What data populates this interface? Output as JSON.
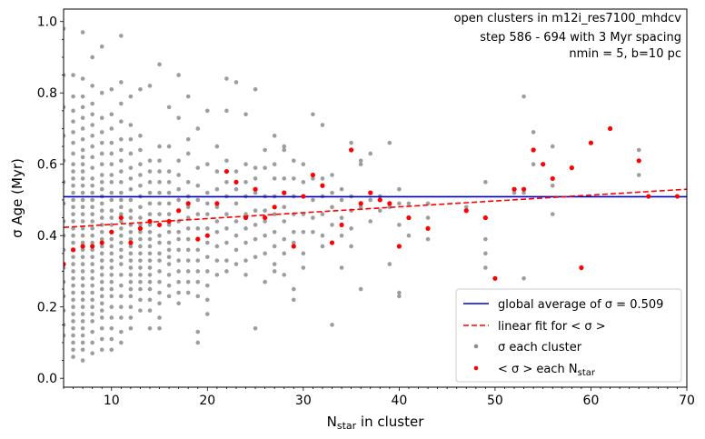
{
  "chart_data": {
    "type": "scatter",
    "xlabel": "N",
    "xlabel_sub": "star",
    "xlabel_suffix": " in cluster",
    "ylabel": "σ Age (Myr)",
    "xlim": [
      5,
      70
    ],
    "ylim": [
      -0.025,
      1.035
    ],
    "x_ticks": [
      10,
      20,
      30,
      40,
      50,
      60,
      70
    ],
    "y_ticks": [
      0.0,
      0.2,
      0.4,
      0.6,
      0.8,
      1.0
    ],
    "x_tick_labels": [
      "10",
      "20",
      "30",
      "40",
      "50",
      "60",
      "70"
    ],
    "y_tick_labels": [
      "0.0",
      "0.2",
      "0.4",
      "0.6",
      "0.8",
      "1.0"
    ],
    "annotations": [
      "open clusters in m12i_res7100_mhdcv",
      "step 586 - 694 with 3 Myr spacing",
      "nmin = 5, b=10 pc"
    ],
    "legend_position": "lower right",
    "legend": [
      {
        "label": "global average of σ = 0.509",
        "kind": "line",
        "color": "#0000cc",
        "dash": false
      },
      {
        "label": "linear fit for < σ >",
        "kind": "line",
        "color": "#ff0000",
        "dash": true
      },
      {
        "label": "σ each cluster",
        "kind": "dot",
        "color": "#8c8c8c"
      },
      {
        "label": "< σ > each N",
        "label_sub": "star",
        "kind": "dot",
        "color": "#ff0000"
      }
    ],
    "series": [
      {
        "name": "global average of σ = 0.509",
        "type": "hline",
        "color": "#0000cc",
        "y": 0.509
      },
      {
        "name": "linear fit for < σ >",
        "type": "line",
        "color": "#ff0000",
        "dashed": true,
        "x": [
          5,
          70
        ],
        "y": [
          0.423,
          0.53
        ]
      },
      {
        "name": "< σ > each N",
        "type": "scatter",
        "color": "#ff0000",
        "points": [
          [
            5,
            0.32
          ],
          [
            6,
            0.36
          ],
          [
            7,
            0.37
          ],
          [
            8,
            0.37
          ],
          [
            9,
            0.38
          ],
          [
            10,
            0.41
          ],
          [
            11,
            0.45
          ],
          [
            12,
            0.38
          ],
          [
            13,
            0.42
          ],
          [
            14,
            0.44
          ],
          [
            15,
            0.43
          ],
          [
            16,
            0.44
          ],
          [
            17,
            0.47
          ],
          [
            18,
            0.49
          ],
          [
            19,
            0.39
          ],
          [
            20,
            0.4
          ],
          [
            21,
            0.49
          ],
          [
            22,
            0.58
          ],
          [
            23,
            0.55
          ],
          [
            24,
            0.45
          ],
          [
            25,
            0.53
          ],
          [
            26,
            0.45
          ],
          [
            27,
            0.48
          ],
          [
            28,
            0.52
          ],
          [
            29,
            0.37
          ],
          [
            30,
            0.51
          ],
          [
            31,
            0.57
          ],
          [
            32,
            0.54
          ],
          [
            33,
            0.38
          ],
          [
            34,
            0.43
          ],
          [
            35,
            0.64
          ],
          [
            36,
            0.49
          ],
          [
            37,
            0.52
          ],
          [
            38,
            0.5
          ],
          [
            39,
            0.49
          ],
          [
            40,
            0.37
          ],
          [
            41,
            0.45
          ],
          [
            43,
            0.42
          ],
          [
            47,
            0.47
          ],
          [
            49,
            0.45
          ],
          [
            50,
            0.28
          ],
          [
            52,
            0.53
          ],
          [
            53,
            0.53
          ],
          [
            54,
            0.64
          ],
          [
            55,
            0.6
          ],
          [
            56,
            0.56
          ],
          [
            58,
            0.59
          ],
          [
            59,
            0.31
          ],
          [
            60,
            0.66
          ],
          [
            62,
            0.7
          ],
          [
            65,
            0.61
          ],
          [
            66,
            0.51
          ],
          [
            69,
            0.51
          ]
        ]
      },
      {
        "name": "σ each cluster",
        "type": "scatter",
        "color": "#8c8c8c",
        "columns": [
          {
            "x": 5,
            "y": [
              0.98,
              0.85,
              0.76,
              0.68,
              0.61,
              0.55,
              0.49,
              0.44,
              0.4,
              0.36,
              0.31,
              0.27,
              0.23,
              0.19,
              0.15,
              0.12
            ]
          },
          {
            "x": 6,
            "y": [
              0.85,
              0.79,
              0.75,
              0.72,
              0.69,
              0.66,
              0.63,
              0.6,
              0.58,
              0.56,
              0.54,
              0.52,
              0.5,
              0.48,
              0.46,
              0.44,
              0.42,
              0.4,
              0.38,
              0.36,
              0.34,
              0.32,
              0.3,
              0.28,
              0.26,
              0.24,
              0.22,
              0.2,
              0.18,
              0.16,
              0.14,
              0.12,
              0.1,
              0.08,
              0.06
            ]
          },
          {
            "x": 7,
            "y": [
              0.97,
              0.84,
              0.79,
              0.76,
              0.73,
              0.7,
              0.67,
              0.64,
              0.62,
              0.6,
              0.58,
              0.56,
              0.54,
              0.52,
              0.5,
              0.48,
              0.46,
              0.44,
              0.42,
              0.4,
              0.38,
              0.36,
              0.34,
              0.32,
              0.3,
              0.28,
              0.26,
              0.24,
              0.22,
              0.2,
              0.18,
              0.16,
              0.14,
              0.12,
              0.1,
              0.08,
              0.05
            ]
          },
          {
            "x": 8,
            "y": [
              0.9,
              0.82,
              0.77,
              0.74,
              0.71,
              0.68,
              0.65,
              0.62,
              0.59,
              0.56,
              0.54,
              0.52,
              0.5,
              0.48,
              0.46,
              0.44,
              0.42,
              0.4,
              0.38,
              0.36,
              0.34,
              0.32,
              0.3,
              0.28,
              0.26,
              0.24,
              0.22,
              0.2,
              0.18,
              0.16,
              0.13,
              0.1,
              0.07
            ]
          },
          {
            "x": 9,
            "y": [
              0.93,
              0.8,
              0.73,
              0.69,
              0.66,
              0.63,
              0.6,
              0.57,
              0.55,
              0.53,
              0.51,
              0.49,
              0.47,
              0.45,
              0.43,
              0.41,
              0.39,
              0.37,
              0.35,
              0.33,
              0.31,
              0.29,
              0.27,
              0.25,
              0.23,
              0.21,
              0.19,
              0.17,
              0.14,
              0.11,
              0.08
            ]
          },
          {
            "x": 10,
            "y": [
              0.81,
              0.74,
              0.7,
              0.66,
              0.63,
              0.6,
              0.57,
              0.55,
              0.52,
              0.5,
              0.47,
              0.45,
              0.43,
              0.41,
              0.39,
              0.37,
              0.35,
              0.33,
              0.31,
              0.29,
              0.27,
              0.25,
              0.23,
              0.2,
              0.17,
              0.14,
              0.11,
              0.08
            ]
          },
          {
            "x": 11,
            "y": [
              0.96,
              0.83,
              0.77,
              0.72,
              0.67,
              0.64,
              0.61,
              0.58,
              0.55,
              0.52,
              0.5,
              0.48,
              0.46,
              0.44,
              0.42,
              0.4,
              0.38,
              0.36,
              0.34,
              0.32,
              0.29,
              0.26,
              0.23,
              0.2,
              0.17,
              0.13,
              0.1
            ]
          },
          {
            "x": 12,
            "y": [
              0.79,
              0.71,
              0.67,
              0.63,
              0.59,
              0.56,
              0.53,
              0.5,
              0.47,
              0.45,
              0.43,
              0.41,
              0.39,
              0.37,
              0.35,
              0.33,
              0.31,
              0.29,
              0.27,
              0.25,
              0.23,
              0.2,
              0.17,
              0.14
            ]
          },
          {
            "x": 13,
            "y": [
              0.81,
              0.68,
              0.64,
              0.6,
              0.57,
              0.54,
              0.51,
              0.48,
              0.45,
              0.43,
              0.41,
              0.39,
              0.37,
              0.35,
              0.33,
              0.31,
              0.29,
              0.27,
              0.25,
              0.22,
              0.19
            ]
          },
          {
            "x": 14,
            "y": [
              0.82,
              0.61,
              0.58,
              0.55,
              0.52,
              0.49,
              0.46,
              0.43,
              0.41,
              0.39,
              0.37,
              0.35,
              0.33,
              0.31,
              0.29,
              0.27,
              0.25,
              0.22,
              0.19,
              0.14
            ]
          },
          {
            "x": 15,
            "y": [
              0.88,
              0.65,
              0.61,
              0.58,
              0.55,
              0.52,
              0.49,
              0.46,
              0.43,
              0.4,
              0.38,
              0.35,
              0.33,
              0.3,
              0.27,
              0.24,
              0.21,
              0.17,
              0.14
            ]
          },
          {
            "x": 16,
            "y": [
              0.76,
              0.65,
              0.58,
              0.55,
              0.52,
              0.49,
              0.46,
              0.43,
              0.41,
              0.38,
              0.36,
              0.34,
              0.32,
              0.29,
              0.26,
              0.23
            ]
          },
          {
            "x": 17,
            "y": [
              0.85,
              0.73,
              0.61,
              0.57,
              0.53,
              0.5,
              0.47,
              0.44,
              0.41,
              0.39,
              0.36,
              0.33,
              0.3,
              0.27,
              0.24,
              0.21
            ]
          },
          {
            "x": 18,
            "y": [
              0.79,
              0.67,
              0.63,
              0.55,
              0.51,
              0.48,
              0.45,
              0.42,
              0.39,
              0.36,
              0.33,
              0.3,
              0.27,
              0.24
            ]
          },
          {
            "x": 19,
            "y": [
              0.7,
              0.59,
              0.54,
              0.5,
              0.46,
              0.42,
              0.39,
              0.36,
              0.33,
              0.3,
              0.27,
              0.23,
              0.13,
              0.1
            ]
          },
          {
            "x": 20,
            "y": [
              0.75,
              0.6,
              0.52,
              0.49,
              0.46,
              0.42,
              0.38,
              0.34,
              0.3,
              0.26,
              0.22,
              0.18
            ]
          },
          {
            "x": 21,
            "y": [
              0.65,
              0.58,
              0.53,
              0.48,
              0.44,
              0.41,
              0.37,
              0.33,
              0.29
            ]
          },
          {
            "x": 22,
            "y": [
              0.84,
              0.75,
              0.61,
              0.55,
              0.51,
              0.46,
              0.42,
              0.38,
              0.33,
              0.3
            ]
          },
          {
            "x": 23,
            "y": [
              0.83,
              0.58,
              0.53,
              0.49,
              0.44,
              0.4,
              0.36,
              0.32
            ]
          },
          {
            "x": 24,
            "y": [
              0.74,
              0.6,
              0.55,
              0.51,
              0.46,
              0.42,
              0.38,
              0.33,
              0.29
            ]
          },
          {
            "x": 25,
            "y": [
              0.81,
              0.59,
              0.56,
              0.52,
              0.47,
              0.43,
              0.39,
              0.34,
              0.14
            ]
          },
          {
            "x": 26,
            "y": [
              0.64,
              0.59,
              0.51,
              0.47,
              0.44,
              0.4,
              0.35,
              0.27
            ]
          },
          {
            "x": 27,
            "y": [
              0.68,
              0.6,
              0.56,
              0.51,
              0.46,
              0.41,
              0.37,
              0.32,
              0.3
            ]
          },
          {
            "x": 28,
            "y": [
              0.65,
              0.64,
              0.56,
              0.48,
              0.44,
              0.39,
              0.35,
              0.29
            ]
          },
          {
            "x": 29,
            "y": [
              0.61,
              0.56,
              0.51,
              0.46,
              0.41,
              0.38,
              0.25,
              0.22
            ]
          },
          {
            "x": 30,
            "y": [
              0.6,
              0.55,
              0.51,
              0.46,
              0.41,
              0.35,
              0.31
            ]
          },
          {
            "x": 31,
            "y": [
              0.74,
              0.56,
              0.5,
              0.45,
              0.41
            ]
          },
          {
            "x": 32,
            "y": [
              0.71,
              0.56,
              0.51,
              0.46,
              0.4,
              0.37
            ]
          },
          {
            "x": 33,
            "y": [
              0.57,
              0.52,
              0.48,
              0.43,
              0.15
            ]
          },
          {
            "x": 34,
            "y": [
              0.53,
              0.5,
              0.45,
              0.4,
              0.31
            ]
          },
          {
            "x": 35,
            "y": [
              0.66,
              0.51,
              0.47,
              0.42,
              0.37
            ]
          },
          {
            "x": 36,
            "y": [
              0.61,
              0.6,
              0.48,
              0.25
            ]
          },
          {
            "x": 37,
            "y": [
              0.63,
              0.5,
              0.44
            ]
          },
          {
            "x": 38,
            "y": [
              0.51,
              0.47
            ]
          },
          {
            "x": 39,
            "y": [
              0.66,
              0.48,
              0.32
            ]
          },
          {
            "x": 40,
            "y": [
              0.53,
              0.49,
              0.43,
              0.24,
              0.23
            ]
          },
          {
            "x": 41,
            "y": [
              0.49,
              0.45,
              0.4
            ]
          },
          {
            "x": 43,
            "y": [
              0.49,
              0.45,
              0.39
            ]
          },
          {
            "x": 47,
            "y": [
              0.48
            ]
          },
          {
            "x": 49,
            "y": [
              0.55,
              0.45,
              0.39,
              0.35,
              0.31
            ]
          },
          {
            "x": 52,
            "y": [
              0.52
            ]
          },
          {
            "x": 53,
            "y": [
              0.79,
              0.52,
              0.28
            ]
          },
          {
            "x": 54,
            "y": [
              0.69,
              0.6
            ]
          },
          {
            "x": 56,
            "y": [
              0.65,
              0.54,
              0.46
            ]
          },
          {
            "x": 65,
            "y": [
              0.64,
              0.57
            ]
          },
          {
            "x": 69,
            "y": [
              0.51
            ]
          }
        ]
      }
    ]
  }
}
